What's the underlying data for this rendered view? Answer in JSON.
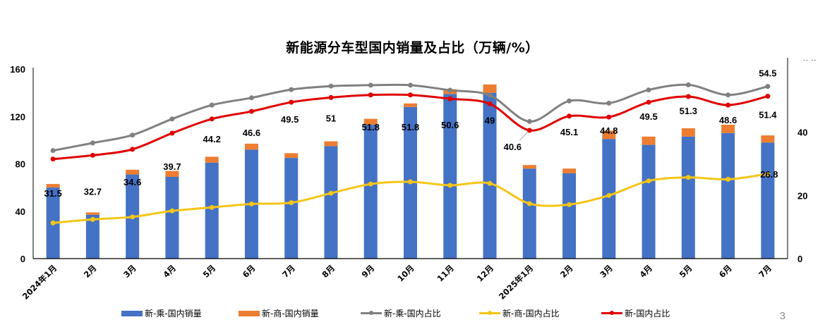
{
  "page": {
    "number": "3",
    "corner_mark": "-- --"
  },
  "chart_data": {
    "type": "bar+line",
    "title": "新能源分车型国内销量及占比（万辆/%）",
    "categories": [
      "2024年1月",
      "2月",
      "3月",
      "4月",
      "5月",
      "6月",
      "7月",
      "8月",
      "9月",
      "10月",
      "11月",
      "12月",
      "2025年1月",
      "2月",
      "3月",
      "4月",
      "5月",
      "6月",
      "7月"
    ],
    "y_left": {
      "range": [
        0,
        160
      ],
      "ticks": [
        "0",
        "40",
        "80",
        "120",
        "160"
      ],
      "ticks_values": [
        0,
        40,
        80,
        120,
        160
      ]
    },
    "y_right": {
      "range": [
        0,
        60
      ],
      "ticks": [
        "0",
        "20",
        "40"
      ],
      "ticks_values": [
        0,
        20,
        40
      ]
    },
    "grid": false,
    "legend_position": "bottom",
    "series": [
      {
        "name": "新-乘-国内销量",
        "kind": "bar",
        "stack": "sales",
        "axis": "left",
        "color": "#4472C4",
        "values": [
          60,
          37,
          71,
          69,
          81,
          92,
          85,
          95,
          113,
          128,
          139,
          140,
          76,
          72,
          101,
          96,
          103,
          106,
          98
        ]
      },
      {
        "name": "新-商-国内销量",
        "kind": "bar",
        "stack": "sales",
        "axis": "left",
        "color": "#ED7D31",
        "values": [
          3,
          2,
          4,
          5,
          5,
          5,
          4,
          4,
          5,
          3,
          4,
          7,
          3,
          4,
          7,
          7,
          7,
          7,
          6
        ]
      },
      {
        "name": "新-乘-国内占比",
        "kind": "line",
        "axis": "right",
        "color": "#808080",
        "values": [
          34.2,
          36.6,
          39.1,
          44.2,
          48.6,
          50.9,
          53.5,
          54.6,
          54.9,
          54.9,
          53.3,
          51.7,
          43.4,
          49.9,
          49.2,
          53.4,
          55.0,
          51.8,
          54.5
        ],
        "labels": [
          null,
          null,
          null,
          null,
          null,
          null,
          null,
          null,
          null,
          null,
          null,
          null,
          null,
          null,
          null,
          null,
          null,
          null,
          "54.5"
        ]
      },
      {
        "name": "新-商-国内占比",
        "kind": "line",
        "axis": "right",
        "color": "#F5C518",
        "values": [
          11.3,
          12.4,
          13.2,
          15.1,
          16.2,
          17.3,
          17.7,
          20.7,
          23.6,
          24.3,
          23.2,
          23.8,
          17.4,
          17.1,
          20.0,
          24.6,
          25.7,
          25.1,
          26.8
        ],
        "labels": [
          null,
          null,
          null,
          null,
          null,
          null,
          null,
          null,
          null,
          null,
          null,
          null,
          null,
          null,
          null,
          null,
          null,
          null,
          "26.8"
        ]
      },
      {
        "name": "新-国内占比",
        "kind": "line",
        "axis": "right",
        "color": "#E00000",
        "values": [
          31.5,
          32.7,
          34.6,
          39.7,
          44.2,
          46.6,
          49.5,
          51,
          51.8,
          51.8,
          50.6,
          49,
          40.6,
          45.1,
          44.8,
          49.5,
          51.3,
          48.6,
          51.4
        ],
        "labels": [
          "31.5",
          "32.7",
          "34.6",
          "39.7",
          "44.2",
          "46.6",
          "49.5",
          "51",
          "51.8",
          "51.8",
          "50.6",
          "49",
          "40.6",
          "45.1",
          "44.8",
          "49.5",
          "51.3",
          "48.6",
          "51.4"
        ]
      }
    ]
  }
}
